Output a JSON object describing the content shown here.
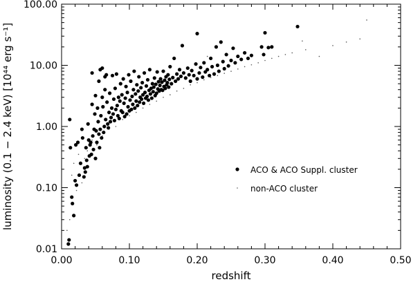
{
  "chart_data": {
    "type": "scatter",
    "title": "",
    "xlabel": "redshift",
    "ylabel": "luminosity (0.1 − 2.4 keV) [10⁴⁴ erg s⁻¹]",
    "xlim": [
      0.0,
      0.5
    ],
    "ylim": [
      0.01,
      100.0
    ],
    "yscale": "log",
    "x_ticks": [
      "0.00",
      "0.10",
      "0.20",
      "0.30",
      "0.40",
      "0.50"
    ],
    "y_ticks": [
      "0.01",
      "0.10",
      "1.00",
      "10.00",
      "100.00"
    ],
    "grid": false,
    "legend_position": "lower-right",
    "series": [
      {
        "name": "ACO & ACO Suppl. cluster",
        "marker": "filled-circle",
        "color": "#000000",
        "points": [
          [
            0.01,
            0.012
          ],
          [
            0.011,
            0.014
          ],
          [
            0.012,
            1.3
          ],
          [
            0.013,
            0.45
          ],
          [
            0.015,
            0.07
          ],
          [
            0.016,
            0.055
          ],
          [
            0.018,
            0.035
          ],
          [
            0.02,
            0.13
          ],
          [
            0.021,
            0.5
          ],
          [
            0.022,
            0.11
          ],
          [
            0.024,
            0.55
          ],
          [
            0.026,
            0.16
          ],
          [
            0.028,
            0.25
          ],
          [
            0.03,
            0.9
          ],
          [
            0.031,
            0.65
          ],
          [
            0.033,
            0.15
          ],
          [
            0.034,
            0.21
          ],
          [
            0.035,
            0.18
          ],
          [
            0.036,
            0.45
          ],
          [
            0.037,
            0.28
          ],
          [
            0.038,
            0.22
          ],
          [
            0.039,
            1.1
          ],
          [
            0.04,
            0.6
          ],
          [
            0.041,
            0.33
          ],
          [
            0.042,
            0.5
          ],
          [
            0.043,
            0.55
          ],
          [
            0.044,
            0.35
          ],
          [
            0.045,
            7.5
          ],
          [
            0.045,
            2.3
          ],
          [
            0.046,
            0.7
          ],
          [
            0.047,
            0.42
          ],
          [
            0.048,
            0.9
          ],
          [
            0.049,
            1.6
          ],
          [
            0.05,
            3.2
          ],
          [
            0.05,
            0.3
          ],
          [
            0.051,
            0.85
          ],
          [
            0.052,
            0.55
          ],
          [
            0.053,
            2.0
          ],
          [
            0.054,
            1.2
          ],
          [
            0.055,
            0.75
          ],
          [
            0.055,
            5.5
          ],
          [
            0.056,
            0.45
          ],
          [
            0.057,
            8.5
          ],
          [
            0.057,
            0.9
          ],
          [
            0.058,
            1.5
          ],
          [
            0.059,
            0.65
          ],
          [
            0.06,
            9.0
          ],
          [
            0.06,
            3.0
          ],
          [
            0.061,
            2.1
          ],
          [
            0.062,
            0.8
          ],
          [
            0.063,
            1.0
          ],
          [
            0.064,
            6.5
          ],
          [
            0.064,
            4.0
          ],
          [
            0.065,
            1.3
          ],
          [
            0.066,
            7.0
          ],
          [
            0.067,
            2.5
          ],
          [
            0.068,
            1.1
          ],
          [
            0.069,
            0.95
          ],
          [
            0.07,
            1.7
          ],
          [
            0.071,
            3.5
          ],
          [
            0.072,
            1.2
          ],
          [
            0.073,
            1.4
          ],
          [
            0.074,
            2.0
          ],
          [
            0.075,
            6.8
          ],
          [
            0.076,
            1.6
          ],
          [
            0.077,
            2.8
          ],
          [
            0.078,
            1.25
          ],
          [
            0.079,
            4.2
          ],
          [
            0.08,
            1.9
          ],
          [
            0.081,
            7.2
          ],
          [
            0.082,
            2.2
          ],
          [
            0.083,
            1.5
          ],
          [
            0.084,
            3.0
          ],
          [
            0.085,
            1.35
          ],
          [
            0.086,
            2.6
          ],
          [
            0.087,
            5.0
          ],
          [
            0.088,
            1.8
          ],
          [
            0.089,
            3.3
          ],
          [
            0.09,
            1.7
          ],
          [
            0.091,
            6.0
          ],
          [
            0.092,
            2.4
          ],
          [
            0.093,
            1.45
          ],
          [
            0.094,
            2.9
          ],
          [
            0.095,
            4.5
          ],
          [
            0.096,
            1.6
          ],
          [
            0.097,
            3.6
          ],
          [
            0.098,
            2.1
          ],
          [
            0.099,
            7.0
          ],
          [
            0.1,
            1.8
          ],
          [
            0.101,
            2.7
          ],
          [
            0.102,
            5.5
          ],
          [
            0.103,
            1.9
          ],
          [
            0.104,
            3.1
          ],
          [
            0.105,
            2.3
          ],
          [
            0.106,
            4.0
          ],
          [
            0.107,
            8.0
          ],
          [
            0.108,
            2.0
          ],
          [
            0.109,
            3.4
          ],
          [
            0.11,
            2.6
          ],
          [
            0.111,
            4.8
          ],
          [
            0.112,
            2.2
          ],
          [
            0.113,
            3.8
          ],
          [
            0.114,
            6.5
          ],
          [
            0.115,
            2.5
          ],
          [
            0.116,
            3.0
          ],
          [
            0.117,
            4.3
          ],
          [
            0.118,
            2.8
          ],
          [
            0.119,
            5.2
          ],
          [
            0.12,
            3.3
          ],
          [
            0.121,
            2.4
          ],
          [
            0.122,
            7.5
          ],
          [
            0.123,
            3.6
          ],
          [
            0.124,
            2.9
          ],
          [
            0.125,
            4.6
          ],
          [
            0.126,
            3.1
          ],
          [
            0.127,
            5.8
          ],
          [
            0.128,
            2.7
          ],
          [
            0.129,
            3.9
          ],
          [
            0.13,
            8.5
          ],
          [
            0.131,
            3.4
          ],
          [
            0.132,
            4.2
          ],
          [
            0.133,
            2.9
          ],
          [
            0.134,
            5.0
          ],
          [
            0.135,
            3.7
          ],
          [
            0.136,
            4.4
          ],
          [
            0.137,
            6.2
          ],
          [
            0.138,
            3.2
          ],
          [
            0.139,
            4.9
          ],
          [
            0.14,
            3.5
          ],
          [
            0.141,
            7.8
          ],
          [
            0.142,
            4.1
          ],
          [
            0.143,
            5.4
          ],
          [
            0.144,
            3.8
          ],
          [
            0.145,
            4.7
          ],
          [
            0.146,
            6.0
          ],
          [
            0.147,
            4.0
          ],
          [
            0.148,
            5.3
          ],
          [
            0.149,
            3.9
          ],
          [
            0.15,
            8.0
          ],
          [
            0.151,
            4.5
          ],
          [
            0.152,
            5.7
          ],
          [
            0.153,
            4.2
          ],
          [
            0.154,
            6.5
          ],
          [
            0.155,
            4.8
          ],
          [
            0.156,
            5.2
          ],
          [
            0.157,
            7.0
          ],
          [
            0.158,
            4.4
          ],
          [
            0.159,
            5.9
          ],
          [
            0.16,
            9.5
          ],
          [
            0.162,
            5.0
          ],
          [
            0.164,
            6.3
          ],
          [
            0.166,
            13.0
          ],
          [
            0.168,
            5.5
          ],
          [
            0.17,
            7.2
          ],
          [
            0.172,
            6.0
          ],
          [
            0.174,
            8.5
          ],
          [
            0.176,
            6.6
          ],
          [
            0.178,
            21.0
          ],
          [
            0.18,
            7.5
          ],
          [
            0.183,
            6.2
          ],
          [
            0.186,
            9.0
          ],
          [
            0.188,
            7.0
          ],
          [
            0.19,
            5.5
          ],
          [
            0.192,
            8.2
          ],
          [
            0.195,
            6.8
          ],
          [
            0.198,
            10.5
          ],
          [
            0.2,
            6.0
          ],
          [
            0.2,
            33.0
          ],
          [
            0.203,
            7.5
          ],
          [
            0.205,
            9.2
          ],
          [
            0.208,
            6.4
          ],
          [
            0.21,
            11.0
          ],
          [
            0.212,
            7.8
          ],
          [
            0.215,
            8.5
          ],
          [
            0.218,
            6.8
          ],
          [
            0.22,
            13.0
          ],
          [
            0.222,
            9.5
          ],
          [
            0.225,
            7.2
          ],
          [
            0.228,
            20.0
          ],
          [
            0.23,
            10.0
          ],
          [
            0.232,
            8.0
          ],
          [
            0.235,
            24.0
          ],
          [
            0.238,
            11.5
          ],
          [
            0.24,
            8.8
          ],
          [
            0.243,
            15.0
          ],
          [
            0.246,
            9.8
          ],
          [
            0.25,
            12.0
          ],
          [
            0.253,
            19.0
          ],
          [
            0.256,
            11.0
          ],
          [
            0.26,
            14.0
          ],
          [
            0.265,
            12.5
          ],
          [
            0.27,
            16.0
          ],
          [
            0.275,
            13.0
          ],
          [
            0.28,
            14.5
          ],
          [
            0.295,
            20.0
          ],
          [
            0.298,
            15.0
          ],
          [
            0.3,
            34.0
          ],
          [
            0.305,
            19.5
          ],
          [
            0.31,
            20.0
          ],
          [
            0.348,
            43.0
          ]
        ]
      },
      {
        "name": "non-ACO cluster",
        "marker": "small-dot",
        "color": "#555555",
        "points": [
          [
            0.008,
            0.02
          ],
          [
            0.012,
            0.03
          ],
          [
            0.015,
            0.16
          ],
          [
            0.018,
            0.25
          ],
          [
            0.022,
            0.09
          ],
          [
            0.025,
            0.35
          ],
          [
            0.03,
            0.12
          ],
          [
            0.034,
            0.3
          ],
          [
            0.038,
            0.4
          ],
          [
            0.045,
            0.6
          ],
          [
            0.052,
            0.5
          ],
          [
            0.06,
            0.7
          ],
          [
            0.07,
            0.9
          ],
          [
            0.08,
            1.0
          ],
          [
            0.09,
            1.3
          ],
          [
            0.1,
            1.5
          ],
          [
            0.11,
            1.7
          ],
          [
            0.12,
            2.0
          ],
          [
            0.13,
            2.3
          ],
          [
            0.14,
            2.6
          ],
          [
            0.15,
            3.0
          ],
          [
            0.16,
            3.3
          ],
          [
            0.17,
            3.8
          ],
          [
            0.18,
            4.2
          ],
          [
            0.19,
            4.8
          ],
          [
            0.2,
            5.2
          ],
          [
            0.21,
            5.8
          ],
          [
            0.215,
            14.0
          ],
          [
            0.22,
            6.3
          ],
          [
            0.23,
            6.8
          ],
          [
            0.24,
            7.4
          ],
          [
            0.25,
            8.0
          ],
          [
            0.26,
            8.7
          ],
          [
            0.27,
            9.5
          ],
          [
            0.28,
            10.2
          ],
          [
            0.29,
            11.0
          ],
          [
            0.3,
            12.0
          ],
          [
            0.31,
            13.0
          ],
          [
            0.32,
            14.0
          ],
          [
            0.33,
            15.0
          ],
          [
            0.34,
            16.0
          ],
          [
            0.355,
            25.0
          ],
          [
            0.36,
            18.0
          ],
          [
            0.38,
            14.0
          ],
          [
            0.4,
            21.0
          ],
          [
            0.42,
            24.0
          ],
          [
            0.44,
            27.0
          ],
          [
            0.45,
            55.0
          ]
        ]
      }
    ]
  }
}
